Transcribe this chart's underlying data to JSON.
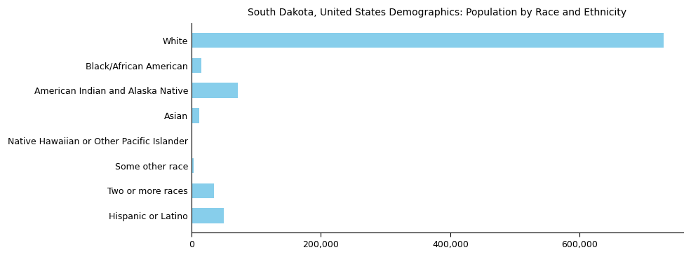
{
  "categories": [
    "White",
    "Black/African American",
    "American Indian and Alaska Native",
    "Asian",
    "Native Hawaiian or Other Pacific Islander",
    "Some other race",
    "Two or more races",
    "Hispanic or Latino"
  ],
  "values": [
    730000,
    15000,
    72000,
    12000,
    1000,
    3000,
    35000,
    50000
  ],
  "bar_color": "#87CEEB",
  "title": "South Dakota, United States Demographics: Population by Race and Ethnicity",
  "title_fontsize": 10,
  "xlabel": "",
  "ylabel": "",
  "xlim": [
    0,
    760000
  ],
  "xticks": [
    0,
    200000,
    400000,
    600000
  ],
  "tick_fontsize": 9,
  "label_fontsize": 9,
  "figsize": [
    9.85,
    3.67
  ],
  "dpi": 100
}
